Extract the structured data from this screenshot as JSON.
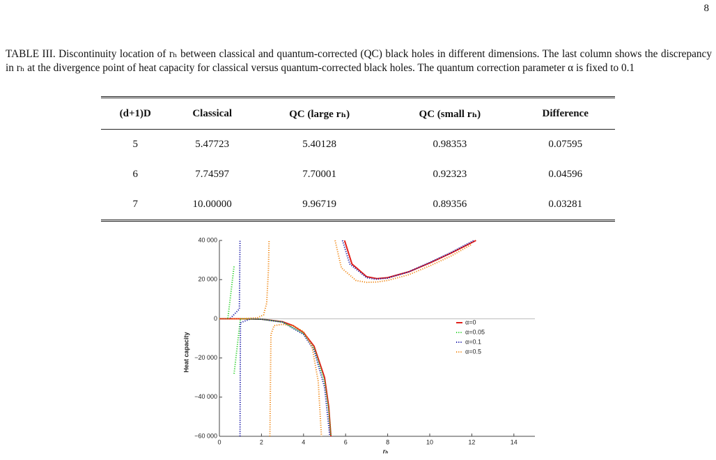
{
  "page_number": "8",
  "caption": "TABLE III. Discontinuity location of rₕ between classical and quantum-corrected (QC) black holes in different dimensions. The last column shows the discrepancy in rₕ at the divergence point of heat capacity for classical versus quantum-corrected black holes. The quantum correction parameter α is fixed to 0.1",
  "table": {
    "header": [
      "(d+1)D",
      "Classical",
      "QC (large rₕ)",
      "QC (small rₕ)",
      "Difference"
    ],
    "rows": [
      [
        "5",
        "5.47723",
        "5.40128",
        "0.98353",
        "0.07595"
      ],
      [
        "6",
        "7.74597",
        "7.70001",
        "0.92323",
        "0.04596"
      ],
      [
        "7",
        "10.00000",
        "9.96719",
        "0.89356",
        "0.03281"
      ]
    ]
  },
  "chart_data": {
    "type": "line",
    "x_label": "rₕ",
    "y_label": "Heat capacity",
    "xlim": [
      0,
      15
    ],
    "ylim": [
      -60000,
      40000
    ],
    "xticks": [
      0,
      2,
      4,
      6,
      8,
      10,
      12,
      14
    ],
    "yticks": [
      {
        "value": 40000,
        "label": "40 000"
      },
      {
        "value": 20000,
        "label": "20 000"
      },
      0,
      {
        "value": -20000,
        "label": "−20 000"
      },
      {
        "value": -40000,
        "label": "−40 000"
      },
      {
        "value": -60000,
        "label": "−60 000"
      }
    ],
    "legend": "right",
    "series": [
      {
        "name": "α=0",
        "color": "#e0201b",
        "style": "solid",
        "x": [
          0,
          1,
          2,
          3,
          3.5,
          4,
          4.5,
          5,
          5.2,
          5.3,
          null,
          5.95,
          6.3,
          7,
          7.5,
          8,
          9,
          10,
          11,
          12.2
        ],
        "values": [
          0,
          0,
          -200,
          -1500,
          -3500,
          -7000,
          -14000,
          -30000,
          -45000,
          -60000,
          null,
          40000,
          28000,
          21500,
          20500,
          21000,
          24000,
          28500,
          33500,
          40000
        ]
      },
      {
        "name": "α=0.05",
        "color": "#2fd12f",
        "style": "dotted",
        "x": [
          0,
          0.4,
          0.7,
          null,
          0.7,
          1,
          2,
          3,
          4,
          4.5,
          5,
          5.2,
          5.3
        ],
        "values": [
          0,
          0,
          27000,
          null,
          -28000,
          0,
          -200,
          -1600,
          -7500,
          -15000,
          -32000,
          -47000,
          -60000
        ]
      },
      {
        "name": "α=0.1",
        "color": "#1a1aa8",
        "style": "dotted",
        "x": [
          0,
          0.5,
          0.95,
          0.98,
          null,
          0.98,
          1.0,
          1.5,
          2,
          3,
          4,
          4.5,
          5,
          5.15,
          5.25,
          null,
          5.85,
          6.2,
          7,
          7.4,
          8,
          9,
          10,
          11,
          12.1
        ],
        "values": [
          0,
          0,
          5000,
          40000,
          null,
          -60000,
          -2000,
          0,
          -200,
          -1700,
          -8000,
          -16000,
          -35000,
          -50000,
          -60000,
          null,
          40000,
          28000,
          21000,
          20200,
          20800,
          24000,
          28800,
          33800,
          40000
        ]
      },
      {
        "name": "α=0.5",
        "color": "#f08a1a",
        "style": "dotted",
        "x": [
          0,
          1,
          1.8,
          2.1,
          2.25,
          2.33,
          2.36,
          null,
          2.4,
          2.45,
          2.6,
          3,
          3.5,
          4,
          4.4,
          4.7,
          4.85,
          null,
          5.5,
          5.8,
          6.5,
          7,
          7.5,
          8,
          9,
          10,
          11,
          12
        ],
        "values": [
          0,
          0,
          500,
          2000,
          8000,
          25000,
          40000,
          null,
          -60000,
          -8000,
          -3500,
          -2800,
          -3500,
          -6500,
          -14000,
          -32000,
          -60000,
          null,
          40000,
          26000,
          19500,
          18600,
          18800,
          19600,
          22500,
          27000,
          32000,
          38000
        ]
      }
    ]
  }
}
